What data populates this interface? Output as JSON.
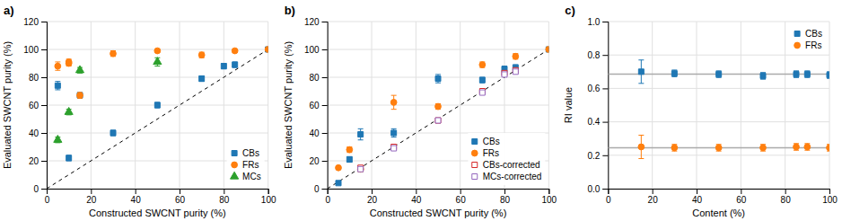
{
  "chart_data": [
    {
      "type": "scatter",
      "title": "a)",
      "x_label": "Constructed SWCNT purity (%)",
      "y_label": "Evaluated SWCNT purity (%)",
      "xlim": [
        0,
        100
      ],
      "ylim": [
        0,
        120
      ],
      "xticks": [
        0,
        20,
        40,
        60,
        80,
        100
      ],
      "yticks": [
        0,
        20,
        40,
        60,
        80,
        100,
        120
      ],
      "grid": true,
      "legend": "lower right",
      "series": [
        {
          "type": "line",
          "line_style": "dashed",
          "color": "#000000",
          "x": [
            0,
            100
          ],
          "values": [
            0,
            100
          ]
        },
        {
          "name": "CBs",
          "marker": "square",
          "x": [
            5,
            10,
            15,
            30,
            50,
            70,
            80,
            85,
            100
          ],
          "values": [
            74,
            22,
            67,
            40,
            60,
            79,
            88,
            89,
            100
          ],
          "errors": [
            3,
            2,
            2,
            2,
            2,
            2,
            2,
            2,
            1
          ]
        },
        {
          "name": "FRs",
          "marker": "circle",
          "x": [
            5,
            10,
            10,
            15,
            30,
            50,
            70,
            85,
            100
          ],
          "values": [
            88,
            90,
            91,
            67,
            97,
            99,
            96,
            99,
            100
          ],
          "errors": [
            3,
            2,
            2,
            2,
            2,
            1,
            2,
            1,
            1
          ]
        },
        {
          "name": "MCs",
          "marker": "triangle",
          "x": [
            5,
            10,
            15,
            50
          ],
          "values": [
            35,
            55,
            85,
            91
          ],
          "errors": [
            2,
            2,
            2,
            3
          ]
        }
      ]
    },
    {
      "type": "scatter",
      "title": "b)",
      "x_label": "Constructed SWCNT purity (%)",
      "y_label": "Evaluated SWCNT purity (%)",
      "xlim": [
        0,
        100
      ],
      "ylim": [
        0,
        120
      ],
      "xticks": [
        0,
        20,
        40,
        60,
        80,
        100
      ],
      "yticks": [
        0,
        20,
        40,
        60,
        80,
        100,
        120
      ],
      "grid": true,
      "legend": "lower right",
      "series": [
        {
          "type": "line",
          "line_style": "dashed",
          "color": "#000000",
          "x": [
            0,
            100
          ],
          "values": [
            0,
            100
          ]
        },
        {
          "name": "CBs",
          "marker": "square",
          "x": [
            5,
            10,
            15,
            30,
            50,
            70,
            80,
            85,
            100
          ],
          "values": [
            4,
            21,
            39,
            40,
            79,
            78,
            86,
            87,
            100
          ],
          "errors": [
            1,
            2,
            4,
            3,
            3,
            2,
            2,
            2,
            1
          ]
        },
        {
          "name": "FRs",
          "marker": "circle",
          "x": [
            5,
            10,
            15,
            30,
            50,
            70,
            85,
            100
          ],
          "values": [
            15,
            28,
            14,
            62,
            59,
            89,
            95,
            100
          ],
          "errors": [
            1,
            2,
            2,
            5,
            2,
            2,
            2,
            1
          ]
        },
        {
          "name": "CBs-corrected",
          "marker": "square-open",
          "x": [
            15,
            30,
            50,
            70,
            80,
            85
          ],
          "values": [
            15,
            30,
            49,
            70,
            83,
            85
          ],
          "errors": [
            1,
            1,
            1,
            1,
            1,
            1
          ]
        },
        {
          "name": "MCs-corrected",
          "marker": "square-open",
          "x": [
            15,
            30,
            50,
            70,
            80,
            85
          ],
          "values": [
            14,
            29,
            49,
            69,
            82,
            84
          ],
          "errors": [
            1,
            1,
            1,
            1,
            1,
            1
          ]
        }
      ]
    },
    {
      "type": "scatter",
      "title": "c)",
      "x_label": "Content (%)",
      "y_label": "RI value",
      "xlim": [
        0,
        100
      ],
      "ylim": [
        0.0,
        1.0
      ],
      "xticks": [
        0,
        20,
        40,
        60,
        80,
        100
      ],
      "yticks": [
        {
          "value": 0,
          "label": "0.0"
        },
        0.2,
        0.4,
        0.6,
        0.8,
        {
          "value": 1,
          "label": "1.0"
        }
      ],
      "grid": true,
      "legend": "upper right",
      "series": [
        {
          "type": "hline",
          "color": "#aaaaaa",
          "values": [
            0.685
          ]
        },
        {
          "type": "hline",
          "color": "#aaaaaa",
          "values": [
            0.245
          ]
        },
        {
          "name": "CBs",
          "marker": "square",
          "x": [
            15,
            30,
            50,
            70,
            85,
            90,
            100
          ],
          "values": [
            0.7,
            0.69,
            0.685,
            0.675,
            0.685,
            0.685,
            0.68
          ],
          "errors": [
            0.07,
            0.02,
            0.02,
            0.02,
            0.02,
            0.02,
            0.02
          ]
        },
        {
          "name": "FRs",
          "marker": "circle",
          "x": [
            15,
            30,
            50,
            70,
            85,
            90,
            100
          ],
          "values": [
            0.25,
            0.245,
            0.245,
            0.245,
            0.25,
            0.25,
            0.245
          ],
          "errors": [
            0.07,
            0.02,
            0.02,
            0.02,
            0.02,
            0.02,
            0.02
          ]
        }
      ]
    }
  ]
}
